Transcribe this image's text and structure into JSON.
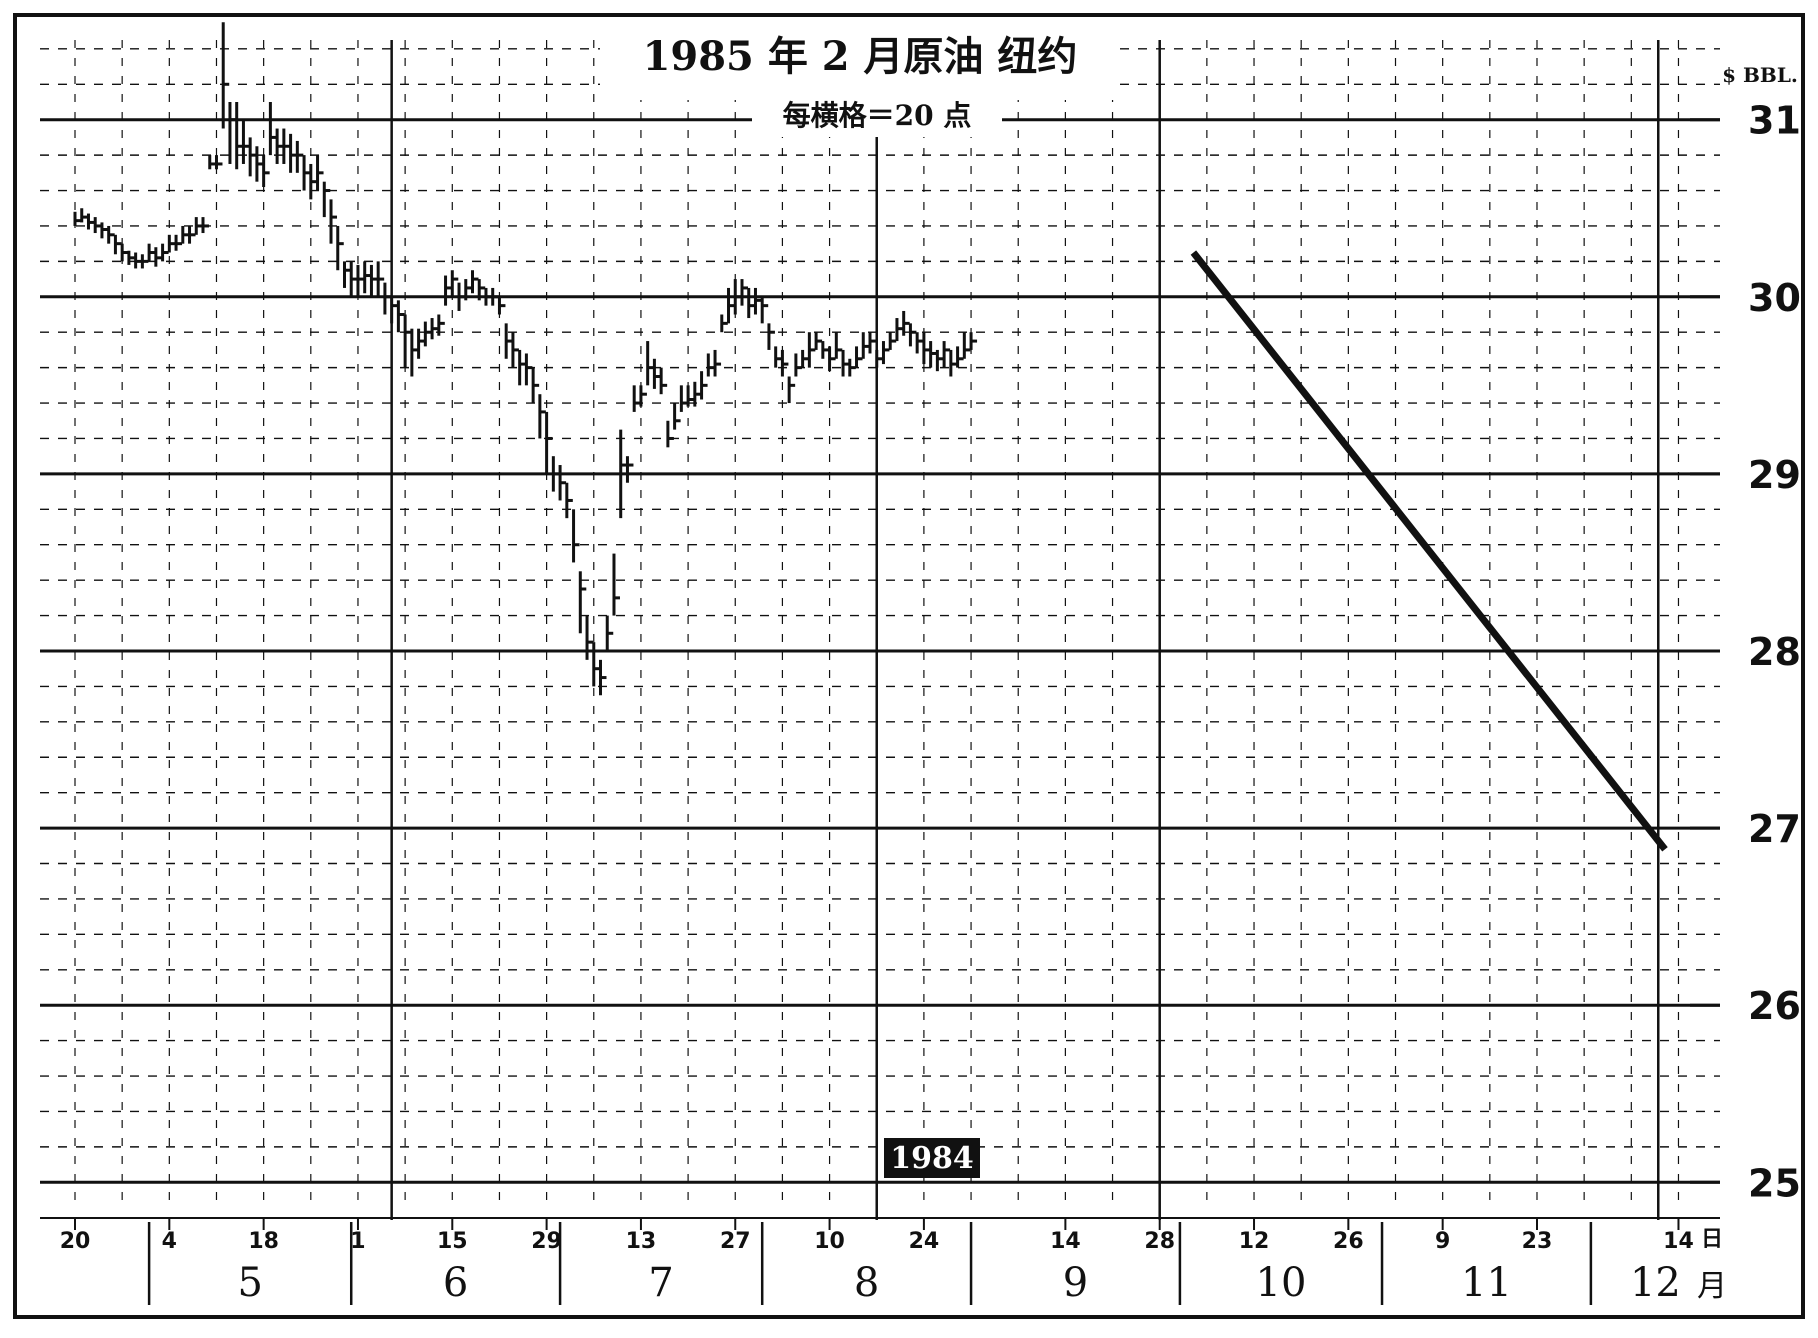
{
  "chart_data": {
    "type": "bar",
    "style": "ohlc",
    "title": "1985 年 2 月原油  纽约",
    "subtitle": "每横格＝20 点",
    "unit_label": "$ BBL.",
    "year_label": "1984",
    "month_suffix": "月",
    "day_suffix": "日",
    "ylim": [
      24.9,
      31.45
    ],
    "y_major_ticks": [
      25,
      26,
      27,
      28,
      29,
      30,
      31
    ],
    "x_range_days": [
      0,
      236
    ],
    "x_tick_labels": [
      {
        "day": 0,
        "label": "20"
      },
      {
        "day": 14,
        "label": "4"
      },
      {
        "day": 28,
        "label": "18"
      },
      {
        "day": 42,
        "label": "1"
      },
      {
        "day": 56,
        "label": "15"
      },
      {
        "day": 70,
        "label": "29"
      },
      {
        "day": 84,
        "label": "13"
      },
      {
        "day": 98,
        "label": "27"
      },
      {
        "day": 112,
        "label": "10"
      },
      {
        "day": 126,
        "label": "24"
      },
      {
        "day": 147,
        "label": "14"
      },
      {
        "day": 161,
        "label": "28"
      },
      {
        "day": 175,
        "label": "12"
      },
      {
        "day": 189,
        "label": "26"
      },
      {
        "day": 203,
        "label": "9"
      },
      {
        "day": 217,
        "label": "23"
      },
      {
        "day": 238,
        "label": "14"
      },
      {
        "day": 252,
        "label": "28"
      }
    ],
    "months": [
      {
        "label": "5",
        "start_day": 11,
        "end_day": 41
      },
      {
        "label": "6",
        "start_day": 41,
        "end_day": 72
      },
      {
        "label": "7",
        "start_day": 72,
        "end_day": 102
      },
      {
        "label": "8",
        "start_day": 102,
        "end_day": 133
      },
      {
        "label": "9",
        "start_day": 133,
        "end_day": 164
      },
      {
        "label": "10",
        "start_day": 164,
        "end_day": 194
      },
      {
        "label": "11",
        "start_day": 194,
        "end_day": 225
      },
      {
        "label": "12",
        "start_day": 225,
        "end_day": 256
      }
    ],
    "series": [
      {
        "values": [
          [
            0,
            30.43,
            30.48,
            30.4
          ],
          [
            1,
            30.45,
            30.5,
            30.42
          ],
          [
            2,
            30.42,
            30.47,
            30.38
          ],
          [
            3,
            30.4,
            30.45,
            30.36
          ],
          [
            4,
            30.38,
            30.42,
            30.33
          ],
          [
            5,
            30.35,
            30.4,
            30.3
          ],
          [
            6,
            30.3,
            30.35,
            30.24
          ],
          [
            7,
            30.25,
            30.3,
            30.2
          ],
          [
            8,
            30.22,
            30.26,
            30.18
          ],
          [
            9,
            30.2,
            30.25,
            30.16
          ],
          [
            10,
            30.2,
            30.24,
            30.16
          ],
          [
            11,
            30.25,
            30.3,
            30.2
          ],
          [
            12,
            30.22,
            30.28,
            30.17
          ],
          [
            13,
            30.25,
            30.3,
            30.2
          ],
          [
            14,
            30.3,
            30.35,
            30.25
          ],
          [
            15,
            30.3,
            30.35,
            30.26
          ],
          [
            16,
            30.35,
            30.4,
            30.3
          ],
          [
            17,
            30.35,
            30.4,
            30.3
          ],
          [
            18,
            30.4,
            30.45,
            30.35
          ],
          [
            19,
            30.4,
            30.45,
            30.36
          ],
          [
            20,
            30.75,
            30.8,
            30.72
          ],
          [
            21,
            30.75,
            30.8,
            30.72
          ],
          [
            22,
            31.2,
            31.55,
            30.95
          ],
          [
            23,
            31.0,
            31.1,
            30.75
          ],
          [
            24,
            30.85,
            31.1,
            30.72
          ],
          [
            25,
            30.85,
            31.0,
            30.75
          ],
          [
            26,
            30.8,
            30.9,
            30.68
          ],
          [
            27,
            30.75,
            30.85,
            30.65
          ],
          [
            28,
            30.7,
            30.8,
            30.62
          ],
          [
            29,
            30.9,
            31.1,
            30.8
          ],
          [
            30,
            30.85,
            30.95,
            30.75
          ],
          [
            31,
            30.85,
            30.95,
            30.75
          ],
          [
            32,
            30.8,
            30.92,
            30.7
          ],
          [
            33,
            30.8,
            30.88,
            30.7
          ],
          [
            34,
            30.7,
            30.8,
            30.6
          ],
          [
            35,
            30.65,
            30.75,
            30.55
          ],
          [
            36,
            30.7,
            30.8,
            30.6
          ],
          [
            37,
            30.6,
            30.65,
            30.45
          ],
          [
            38,
            30.45,
            30.55,
            30.3
          ],
          [
            39,
            30.3,
            30.4,
            30.15
          ],
          [
            40,
            30.15,
            30.2,
            30.05
          ],
          [
            41,
            30.1,
            30.2,
            30.0
          ],
          [
            42,
            30.1,
            30.18,
            30.0
          ],
          [
            43,
            30.12,
            30.2,
            30.02
          ],
          [
            44,
            30.1,
            30.18,
            30.0
          ],
          [
            45,
            30.1,
            30.2,
            30.0
          ],
          [
            46,
            30.0,
            30.08,
            29.9
          ],
          [
            47,
            29.95,
            30.0,
            29.85
          ],
          [
            48,
            29.9,
            29.98,
            29.8
          ],
          [
            49,
            29.8,
            29.9,
            29.6
          ],
          [
            50,
            29.7,
            29.82,
            29.55
          ],
          [
            51,
            29.75,
            29.82,
            29.65
          ],
          [
            52,
            29.8,
            29.86,
            29.72
          ],
          [
            53,
            29.82,
            29.88,
            29.76
          ],
          [
            54,
            29.85,
            29.9,
            29.78
          ],
          [
            55,
            30.05,
            30.12,
            29.95
          ],
          [
            56,
            30.1,
            30.15,
            30.0
          ],
          [
            57,
            30.0,
            30.08,
            29.92
          ],
          [
            58,
            30.05,
            30.1,
            29.98
          ],
          [
            59,
            30.1,
            30.15,
            30.02
          ],
          [
            60,
            30.05,
            30.1,
            29.98
          ],
          [
            61,
            30.0,
            30.05,
            29.95
          ],
          [
            62,
            30.0,
            30.05,
            29.95
          ],
          [
            63,
            29.95,
            30.0,
            29.9
          ],
          [
            64,
            29.75,
            29.85,
            29.65
          ],
          [
            65,
            29.7,
            29.8,
            29.6
          ],
          [
            66,
            29.62,
            29.7,
            29.5
          ],
          [
            67,
            29.6,
            29.68,
            29.5
          ],
          [
            68,
            29.5,
            29.6,
            29.4
          ],
          [
            69,
            29.35,
            29.45,
            29.2
          ],
          [
            70,
            29.2,
            29.35,
            29.0
          ],
          [
            71,
            29.0,
            29.1,
            28.9
          ],
          [
            72,
            28.95,
            29.05,
            28.85
          ],
          [
            73,
            28.85,
            28.95,
            28.75
          ],
          [
            74,
            28.6,
            28.8,
            28.5
          ],
          [
            75,
            28.35,
            28.45,
            28.1
          ],
          [
            76,
            28.05,
            28.2,
            27.95
          ],
          [
            77,
            27.9,
            28.05,
            27.8
          ],
          [
            78,
            27.85,
            27.95,
            27.75
          ],
          [
            79,
            28.1,
            28.2,
            28.0
          ],
          [
            80,
            28.3,
            28.55,
            28.2
          ],
          [
            81,
            29.05,
            29.25,
            28.75
          ],
          [
            82,
            29.05,
            29.1,
            28.95
          ],
          [
            83,
            29.4,
            29.5,
            29.35
          ],
          [
            84,
            29.45,
            29.5,
            29.38
          ],
          [
            85,
            29.6,
            29.75,
            29.5
          ],
          [
            86,
            29.55,
            29.65,
            29.48
          ],
          [
            87,
            29.5,
            29.6,
            29.45
          ],
          [
            88,
            29.2,
            29.3,
            29.15
          ],
          [
            89,
            29.3,
            29.4,
            29.25
          ],
          [
            90,
            29.4,
            29.5,
            29.35
          ],
          [
            91,
            29.42,
            29.5,
            29.38
          ],
          [
            92,
            29.45,
            29.52,
            29.38
          ],
          [
            93,
            29.5,
            29.58,
            29.42
          ],
          [
            94,
            29.6,
            29.68,
            29.55
          ],
          [
            95,
            29.62,
            29.7,
            29.55
          ],
          [
            96,
            29.85,
            29.9,
            29.8
          ],
          [
            97,
            29.95,
            30.05,
            29.85
          ],
          [
            98,
            30.0,
            30.1,
            29.9
          ],
          [
            99,
            30.05,
            30.1,
            29.95
          ],
          [
            100,
            29.95,
            30.05,
            29.88
          ],
          [
            101,
            29.98,
            30.05,
            29.9
          ],
          [
            102,
            29.95,
            30.0,
            29.85
          ],
          [
            103,
            29.8,
            29.85,
            29.7
          ],
          [
            104,
            29.65,
            29.72,
            29.6
          ],
          [
            105,
            29.62,
            29.7,
            29.55
          ],
          [
            106,
            29.5,
            29.55,
            29.4
          ],
          [
            107,
            29.6,
            29.68,
            29.55
          ],
          [
            108,
            29.65,
            29.7,
            29.6
          ],
          [
            109,
            29.7,
            29.8,
            29.6
          ],
          [
            110,
            29.75,
            29.8,
            29.7
          ],
          [
            111,
            29.7,
            29.75,
            29.65
          ],
          [
            112,
            29.65,
            29.72,
            29.58
          ],
          [
            113,
            29.7,
            29.8,
            29.65
          ],
          [
            114,
            29.62,
            29.7,
            29.55
          ],
          [
            115,
            29.6,
            29.65,
            29.55
          ],
          [
            116,
            29.65,
            29.72,
            29.6
          ],
          [
            117,
            29.72,
            29.8,
            29.65
          ],
          [
            118,
            29.75,
            29.8,
            29.68
          ],
          [
            119,
            29.65,
            29.7,
            29.6
          ],
          [
            120,
            29.7,
            29.75,
            29.62
          ],
          [
            121,
            29.75,
            29.8,
            29.7
          ],
          [
            122,
            29.82,
            29.88,
            29.75
          ],
          [
            123,
            29.85,
            29.92,
            29.78
          ],
          [
            124,
            29.8,
            29.85,
            29.72
          ],
          [
            125,
            29.75,
            29.8,
            29.68
          ],
          [
            126,
            29.7,
            29.8,
            29.62
          ],
          [
            127,
            29.68,
            29.75,
            29.6
          ],
          [
            128,
            29.65,
            29.7,
            29.58
          ],
          [
            129,
            29.7,
            29.75,
            29.6
          ],
          [
            130,
            29.62,
            29.7,
            29.55
          ],
          [
            131,
            29.65,
            29.72,
            29.6
          ],
          [
            132,
            29.7,
            29.8,
            29.65
          ],
          [
            133,
            29.75,
            29.8,
            29.7
          ]
        ]
      }
    ],
    "trendline": {
      "from": [
        166,
        30.25
      ],
      "to": [
        236,
        26.88
      ]
    }
  }
}
